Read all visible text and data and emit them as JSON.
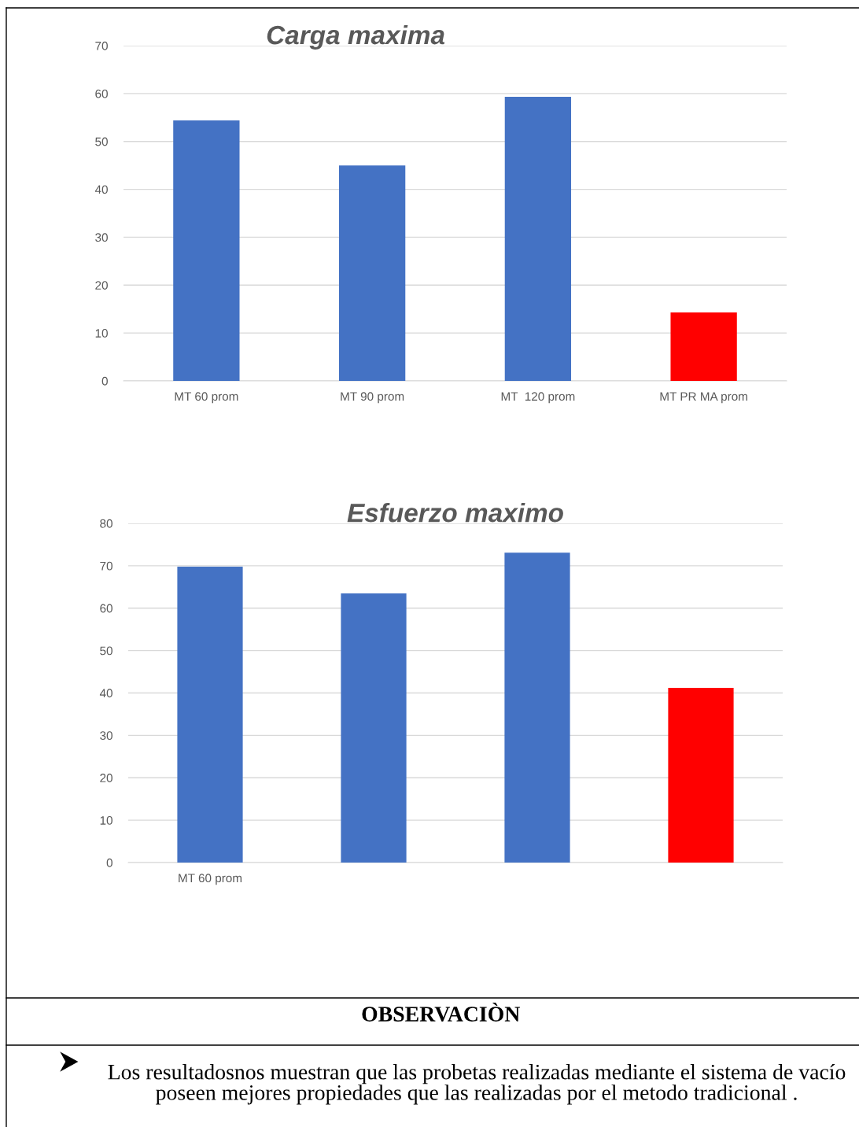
{
  "chart_data": [
    {
      "type": "bar",
      "title": "Carga maxima",
      "categories": [
        "MT 60 prom",
        "MT 90 prom",
        "MT  120 prom",
        "MT PR MA prom"
      ],
      "values": [
        54.4,
        45.0,
        59.3,
        14.3
      ],
      "colors": [
        "#4472c4",
        "#4472c4",
        "#4472c4",
        "#ff0000"
      ],
      "ylim": [
        0,
        70
      ],
      "yticks": [
        0,
        10,
        20,
        30,
        40,
        50,
        60,
        70
      ],
      "grid": "y"
    },
    {
      "type": "bar",
      "title": "Esfuerzo maximo",
      "categories": [
        "MT 60 prom",
        null,
        null,
        null
      ],
      "values": [
        69.8,
        63.5,
        73.1,
        41.2
      ],
      "colors": [
        "#4472c4",
        "#4472c4",
        "#4472c4",
        "#ff0000"
      ],
      "ylim": [
        0,
        80
      ],
      "yticks": [
        0,
        10,
        20,
        30,
        40,
        50,
        60,
        70,
        80
      ],
      "grid": "y",
      "annotations": [
        "OBSERVACIÒN",
        "Los resultadosnos muestran que las probetas realizadas mediante el sistema de vacío poseen mejores propiedades que las realizadas por el metodo tradicional ."
      ]
    }
  ]
}
